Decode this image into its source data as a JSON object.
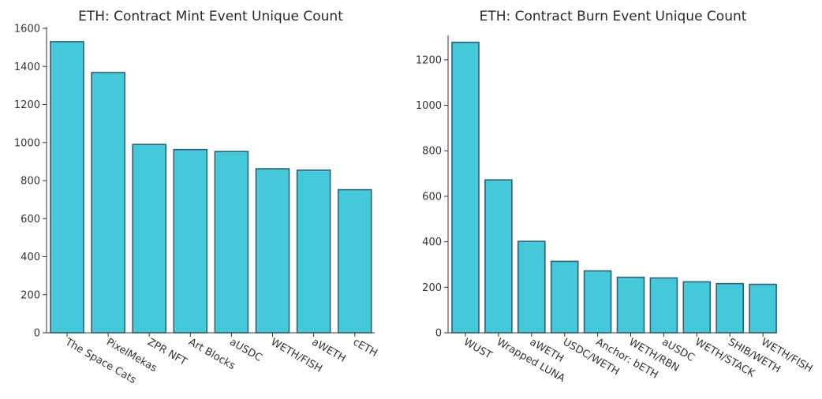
{
  "colors": {
    "bar_fill": "#46c8db",
    "bar_stroke": "#2e6270",
    "axis": "#333333",
    "text": "#2a2a2a"
  },
  "chart_data": [
    {
      "type": "bar",
      "title": "ETH: Contract Mint Event Unique Count",
      "xlabel": "",
      "ylabel": "",
      "categories": [
        "The Space Cats",
        "PixelMekas",
        "ZPR NFT",
        "Art Blocks",
        "aUSDC",
        "WETH/FISH",
        "aWETH",
        "cETH"
      ],
      "values": [
        1530,
        1368,
        990,
        963,
        953,
        862,
        855,
        752
      ],
      "ylim": [
        0,
        1600
      ],
      "yticks": [
        "0",
        "200",
        "400",
        "600",
        "800",
        "1000",
        "1200",
        "1400",
        "1600"
      ],
      "grid": false
    },
    {
      "type": "bar",
      "title": "ETH: Contract Burn Event Unique Count",
      "xlabel": "",
      "ylabel": "",
      "categories": [
        "WUST",
        "Wrapped LUNA",
        "aWETH",
        "USDC/WETH",
        "Anchor: bETH",
        "WETH/RBN",
        "aUSDC",
        "WETH/STACK",
        "SHIB/WETH",
        "WETH/FISH"
      ],
      "values": [
        1277,
        672,
        402,
        314,
        272,
        244,
        241,
        224,
        216,
        213
      ],
      "ylim": [
        0,
        1300
      ],
      "yticks": [
        "0",
        "200",
        "400",
        "600",
        "800",
        "1000",
        "1200"
      ],
      "grid": false
    }
  ]
}
